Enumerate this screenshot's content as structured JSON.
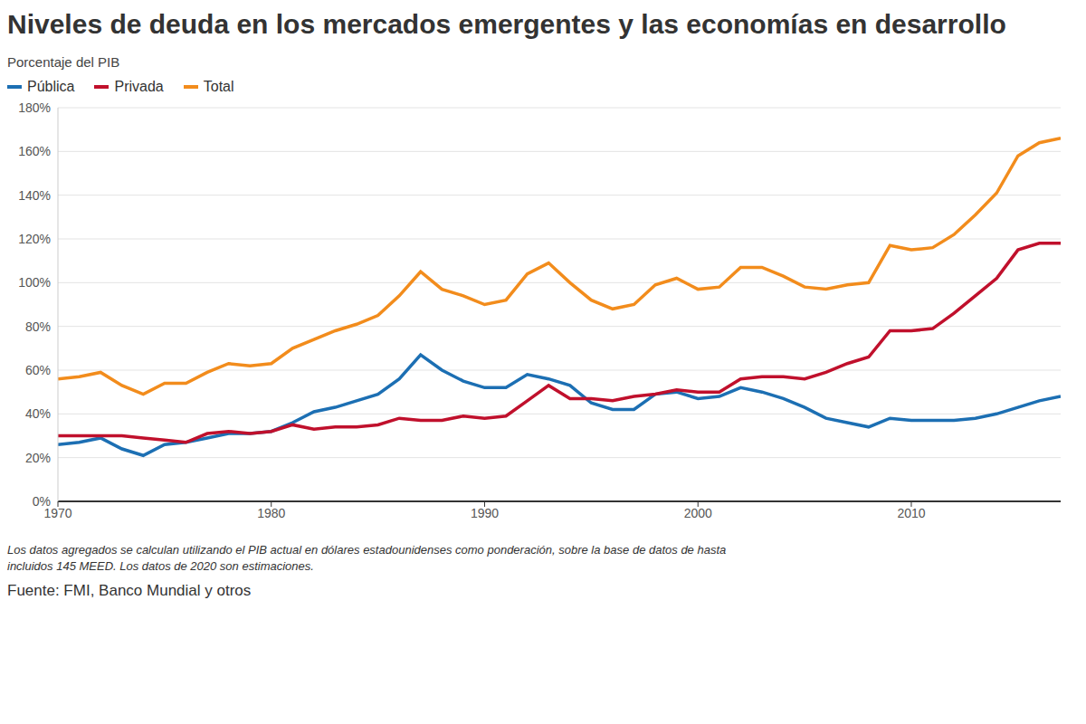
{
  "chart_data": {
    "type": "line",
    "title": "Niveles de deuda en los mercados emergentes y las economías en desarrollo",
    "subtitle": "Porcentaje del PIB",
    "notes": [
      "Los datos agregados se calculan utilizando el PIB actual en dólares estadounidenses como ponderación, sobre la base de datos de hasta",
      "incluidos 145 MEED. Los datos de 2020 son estimaciones."
    ],
    "source": "Fuente: FMI, Banco Mundial y otros",
    "x": [
      1970,
      1971,
      1972,
      1973,
      1974,
      1975,
      1976,
      1977,
      1978,
      1979,
      1980,
      1981,
      1982,
      1983,
      1984,
      1985,
      1986,
      1987,
      1988,
      1989,
      1990,
      1991,
      1992,
      1993,
      1994,
      1995,
      1996,
      1997,
      1998,
      1999,
      2000,
      2001,
      2002,
      2003,
      2004,
      2005,
      2006,
      2007,
      2008,
      2009,
      2010,
      2011,
      2012,
      2013,
      2014,
      2015,
      2016,
      2017
    ],
    "series": [
      {
        "name": "Pública",
        "color": "#1c6fb3",
        "values": [
          26,
          27,
          29,
          24,
          21,
          26,
          27,
          29,
          31,
          31,
          32,
          36,
          41,
          43,
          46,
          49,
          56,
          67,
          60,
          55,
          52,
          52,
          58,
          56,
          53,
          45,
          42,
          42,
          49,
          50,
          47,
          48,
          52,
          50,
          47,
          43,
          38,
          36,
          34,
          38,
          37,
          37,
          37,
          38,
          40,
          43,
          46,
          48
        ]
      },
      {
        "name": "Privada",
        "color": "#c0102c",
        "values": [
          30,
          30,
          30,
          30,
          29,
          28,
          27,
          31,
          32,
          31,
          32,
          35,
          33,
          34,
          34,
          35,
          38,
          37,
          37,
          39,
          38,
          39,
          46,
          53,
          47,
          47,
          46,
          48,
          49,
          51,
          50,
          50,
          56,
          57,
          57,
          56,
          59,
          63,
          66,
          78,
          78,
          79,
          86,
          94,
          102,
          115,
          118,
          118
        ]
      },
      {
        "name": "Total",
        "color": "#f28c1c",
        "values": [
          56,
          57,
          59,
          53,
          49,
          54,
          54,
          59,
          63,
          62,
          63,
          70,
          74,
          78,
          81,
          85,
          94,
          105,
          97,
          94,
          90,
          92,
          104,
          109,
          100,
          92,
          88,
          90,
          99,
          102,
          97,
          98,
          107,
          107,
          103,
          98,
          97,
          99,
          100,
          117,
          115,
          116,
          122,
          131,
          141,
          158,
          164,
          166
        ]
      }
    ],
    "xlim": [
      1970,
      2017
    ],
    "xticks": [
      1970,
      1980,
      1990,
      2000,
      2010
    ],
    "ylim": [
      0,
      180
    ],
    "yticks": [
      {
        "value": 0,
        "label": "0%"
      },
      {
        "value": 20,
        "label": "20%"
      },
      {
        "value": 40,
        "label": "40%"
      },
      {
        "value": 60,
        "label": "60%"
      },
      {
        "value": 80,
        "label": "80%"
      },
      {
        "value": 100,
        "label": "100%"
      },
      {
        "value": 120,
        "label": "120%"
      },
      {
        "value": 140,
        "label": "140%"
      },
      {
        "value": 160,
        "label": "160%"
      },
      {
        "value": 180,
        "label": "180%"
      }
    ],
    "grid": true,
    "legend": "top-left"
  }
}
